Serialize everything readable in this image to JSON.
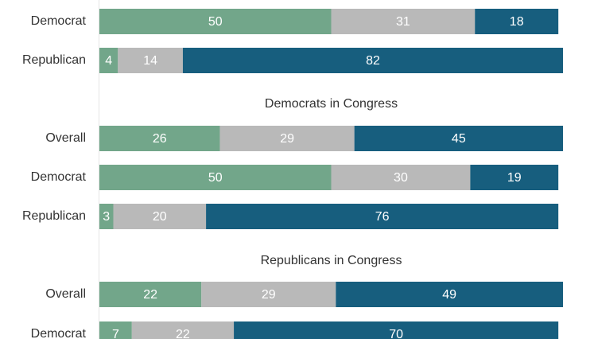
{
  "chart_data": {
    "type": "bar",
    "orientation": "horizontal",
    "stacked": true,
    "xlim": [
      0,
      100
    ],
    "colors": [
      "#72a68a",
      "#b9b9b9",
      "#175e7e"
    ],
    "label_colors": [
      "#ffffff",
      "#ffffff",
      "#ffffff"
    ],
    "groups": [
      {
        "title": "",
        "rows": [
          {
            "label": "Democrat",
            "values": [
              50,
              31,
              18
            ]
          },
          {
            "label": "Republican",
            "values": [
              4,
              14,
              82
            ]
          }
        ]
      },
      {
        "title": "Democrats in Congress",
        "rows": [
          {
            "label": "Overall",
            "values": [
              26,
              29,
              45
            ]
          },
          {
            "label": "Democrat",
            "values": [
              50,
              30,
              19
            ]
          },
          {
            "label": "Republican",
            "values": [
              3,
              20,
              76
            ]
          }
        ]
      },
      {
        "title": "Republicans in Congress",
        "rows": [
          {
            "label": "Overall",
            "values": [
              22,
              29,
              49
            ]
          },
          {
            "label": "Democrat",
            "values": [
              7,
              22,
              70
            ]
          }
        ]
      }
    ]
  }
}
